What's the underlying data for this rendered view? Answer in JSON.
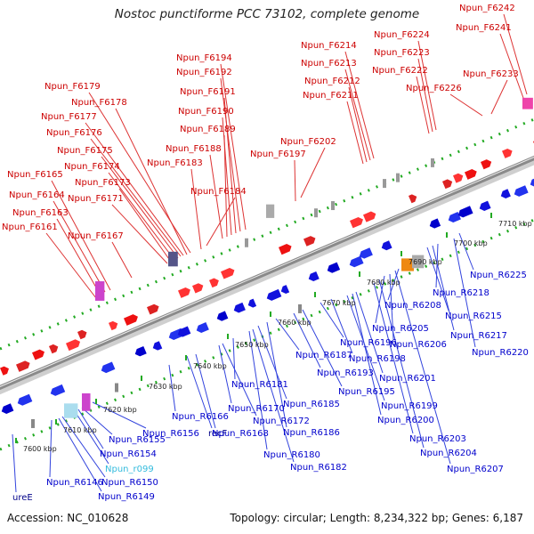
{
  "title": "Nostoc punctiforme PCC 73102, complete genome",
  "footer": {
    "accession": "Accession: NC_010628",
    "summary": "Topology: circular; Length: 8,234,322 bp; Genes: 6,187"
  },
  "colors": {
    "forward_label": "#cc0000",
    "reverse_label": "#0000cc",
    "rna_label": "#33bbdd",
    "other_label": "#000088",
    "backbone": "#8a8a8a",
    "dots": "#22aa22"
  },
  "ticks": [
    "7600 kbp",
    "7610 kbp",
    "7620 kbp",
    "7630 kbp",
    "7640 kbp",
    "7650 kbp",
    "7660 kbp",
    "7670 kbp",
    "7680 kbp",
    "7690 kbp",
    "7700 kbp",
    "7710 kbp"
  ],
  "forward_labels": [
    "Npun_F6161",
    "Npun_F6163",
    "Npun_F6164",
    "Npun_F6165",
    "Npun_F6167",
    "Npun_F6171",
    "Npun_F6173",
    "Npun_F6174",
    "Npun_F6175",
    "Npun_F6176",
    "Npun_F6177",
    "Npun_F6178",
    "Npun_F6179",
    "Npun_F6183",
    "Npun_F6184",
    "Npun_F6188",
    "Npun_F6189",
    "Npun_F6190",
    "Npun_F6191",
    "Npun_F6192",
    "Npun_F6194",
    "Npun_F6197",
    "Npun_F6202",
    "Npun_F6211",
    "Npun_F6212",
    "Npun_F6213",
    "Npun_F6214",
    "Npun_F6222",
    "Npun_F6223",
    "Npun_F6224",
    "Npun_F6226",
    "Npun_F6233",
    "Npun_F6241",
    "Npun_F6242"
  ],
  "reverse_labels": [
    "ureE",
    "Npun_R6149",
    "Npun_R6150",
    "Npun_R6146",
    "Npun_r099",
    "Npun_R6154",
    "Npun_R6155",
    "Npun_R6156",
    "Npun_R6166",
    "recF",
    "Npun_R6168",
    "Npun_R6170",
    "Npun_R6172",
    "Npun_R6181",
    "Npun_R6180",
    "Npun_R6182",
    "Npun_R6185",
    "Npun_R6186",
    "Npun_R6187",
    "Npun_R6193",
    "Npun_R6195",
    "Npun_R6196",
    "Npun_R6198",
    "Npun_R6199",
    "Npun_R6200",
    "Npun_R6201",
    "Npun_R6203",
    "Npun_R6204",
    "Npun_R6205",
    "Npun_R6206",
    "Npun_R6207",
    "Npun_R6208",
    "Npun_R6215",
    "Npun_R6217",
    "Npun_R6218",
    "Npun_R6220",
    "Npun_R6225"
  ]
}
